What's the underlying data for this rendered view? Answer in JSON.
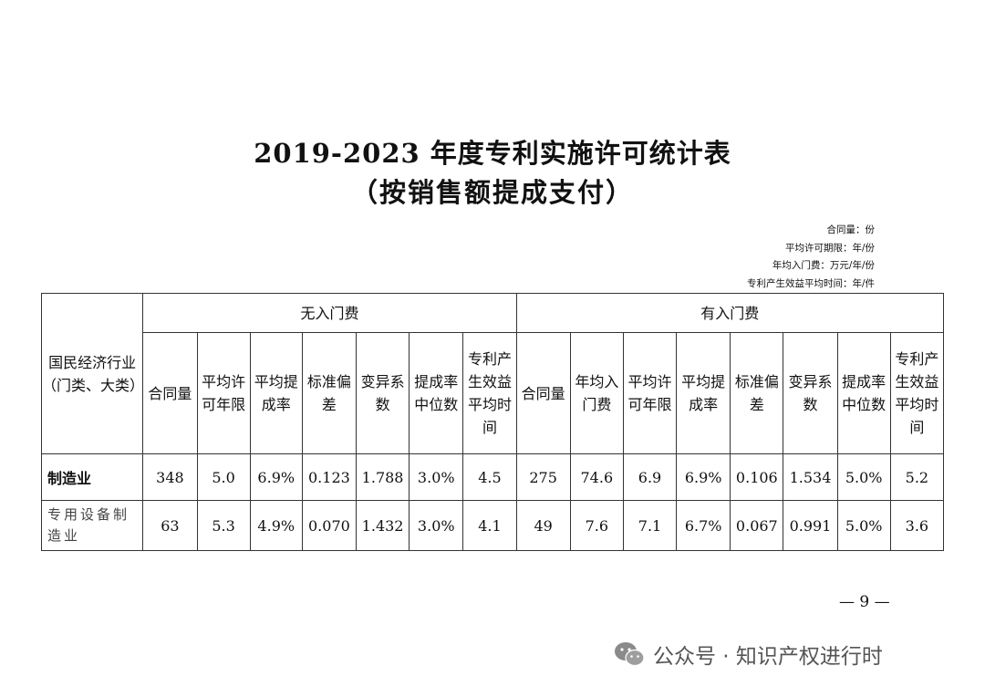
{
  "title_line1": "2019-2023 年度专利实施许可统计表",
  "title_line2": "（按销售额提成支付）",
  "units": [
    "合同量：份",
    "平均许可期限：年/份",
    "年均入门费：万元/年/份",
    "专利产生效益平均时间：年/件"
  ],
  "table": {
    "industry_header": "国民经济行业（门类、大类）",
    "group_no_fee": "无入门费",
    "group_with_fee": "有入门费",
    "columns_no_fee": [
      "合同量",
      "平均许可年限",
      "平均提成率",
      "标准偏差",
      "变异系数",
      "提成率中位数",
      "专利产生效益平均时间"
    ],
    "columns_with_fee": [
      "合同量",
      "年均入门费",
      "平均许可年限",
      "平均提成率",
      "标准偏差",
      "变异系数",
      "提成率中位数",
      "专利产生效益平均时间"
    ],
    "rows": [
      {
        "industry": "制造业",
        "no_fee": [
          "348",
          "5.0",
          "6.9%",
          "0.123",
          "1.788",
          "3.0%",
          "4.5"
        ],
        "with_fee": [
          "275",
          "74.6",
          "6.9",
          "6.9%",
          "0.106",
          "1.534",
          "5.0%",
          "5.2"
        ]
      },
      {
        "industry": "专用设备制造业",
        "no_fee": [
          "63",
          "5.3",
          "4.9%",
          "0.070",
          "1.432",
          "3.0%",
          "4.1"
        ],
        "with_fee": [
          "49",
          "7.6",
          "7.1",
          "6.7%",
          "0.067",
          "0.991",
          "5.0%",
          "3.6"
        ]
      }
    ]
  },
  "page_number": "— 9 —",
  "watermark": {
    "text": "公众号 · 知识产权进行时",
    "icon": "wechat-icon"
  }
}
